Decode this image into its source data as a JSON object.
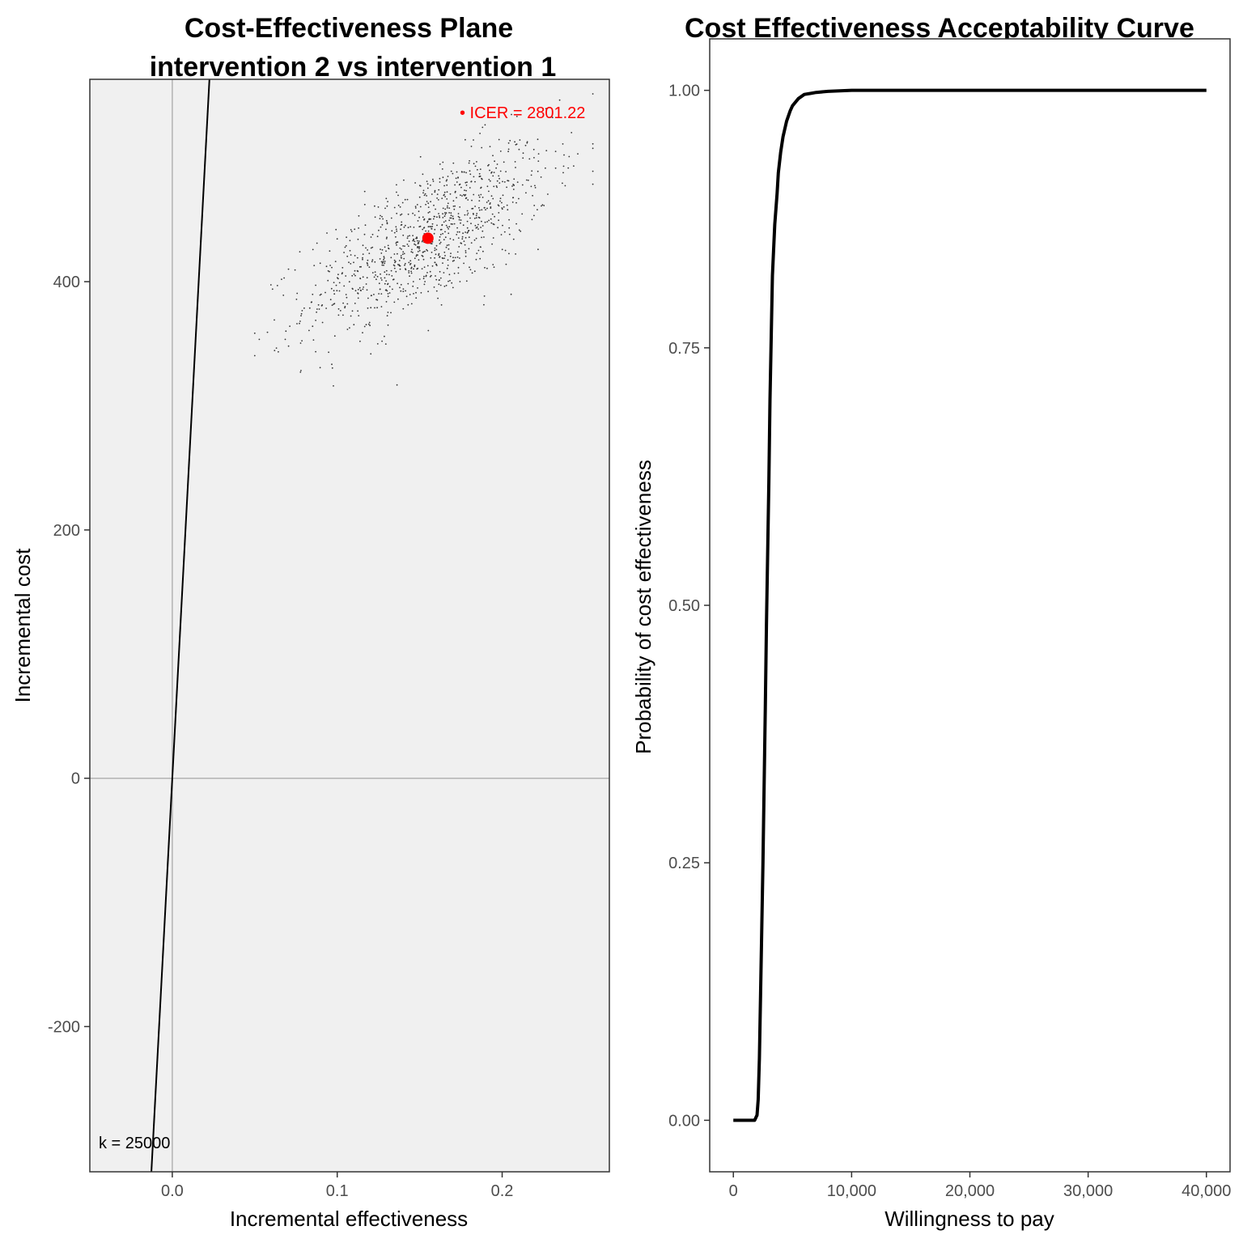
{
  "colors": {
    "panel_bg": "#f0f0f0",
    "scatter_points": "#333333",
    "icer_point": "#ff0000",
    "icer_label": "#ff0000",
    "wtp_line": "#000000",
    "curve": "#000000",
    "reference_lines": "#b3b3b3"
  },
  "chart_data": [
    {
      "type": "scatter",
      "title_line1": "Cost-Effectiveness Plane",
      "title_line2": "intervention 2 vs intervention 1",
      "xlabel": "Incremental effectiveness",
      "ylabel": "Incremental cost",
      "xlim": [
        -0.05,
        0.265
      ],
      "ylim": [
        -317,
        563
      ],
      "x_ticks": [
        0.0,
        0.1,
        0.2
      ],
      "x_tick_labels": [
        "0.0",
        "0.1",
        "0.2"
      ],
      "y_ticks": [
        -200,
        0,
        200,
        400
      ],
      "y_tick_labels": [
        "-200",
        "0",
        "200",
        "400"
      ],
      "grid": false,
      "reference_lines": {
        "x": 0,
        "y": 0
      },
      "point_cloud": {
        "n": 1000,
        "mean_x": 0.155,
        "mean_y": 435,
        "sd_x": 0.037,
        "sd_y": 38,
        "correlation": 0.7,
        "x_range": [
          0.05,
          0.255
        ],
        "y_range": [
          316,
          563
        ]
      },
      "icer_point": {
        "x": 0.155,
        "y": 435
      },
      "icer_label": "• ICER = 2801.22",
      "wtp_line": {
        "slope": 25000,
        "label": "k = 25000"
      }
    },
    {
      "type": "line",
      "title": "Cost Effectiveness Acceptability Curve",
      "xlabel": "Willingness to pay",
      "ylabel": "Probability of cost effectiveness",
      "xlim": [
        -2000,
        42000
      ],
      "ylim": [
        -0.05,
        1.05
      ],
      "x_ticks": [
        0,
        10000,
        20000,
        30000,
        40000
      ],
      "x_tick_labels": [
        "0",
        "10,000",
        "20,000",
        "30,000",
        "40,000"
      ],
      "y_ticks": [
        0.0,
        0.25,
        0.5,
        0.75,
        1.0
      ],
      "y_tick_labels": [
        "0.00",
        "0.25",
        "0.50",
        "0.75",
        "1.00"
      ],
      "grid": false,
      "x": [
        0,
        1000,
        1500,
        1800,
        2000,
        2100,
        2200,
        2300,
        2500,
        2700,
        2800,
        2900,
        3000,
        3100,
        3200,
        3300,
        3500,
        3700,
        3800,
        4000,
        4200,
        4500,
        4800,
        5000,
        5500,
        6000,
        6500,
        7000,
        8000,
        10000,
        15000,
        20000,
        30000,
        40000
      ],
      "y": [
        0.0,
        0.0,
        0.0,
        0.0,
        0.005,
        0.02,
        0.06,
        0.12,
        0.25,
        0.4,
        0.48,
        0.55,
        0.62,
        0.7,
        0.76,
        0.82,
        0.87,
        0.9,
        0.92,
        0.94,
        0.955,
        0.97,
        0.98,
        0.985,
        0.992,
        0.996,
        0.997,
        0.998,
        0.999,
        1.0,
        1.0,
        1.0,
        1.0,
        1.0
      ]
    }
  ]
}
